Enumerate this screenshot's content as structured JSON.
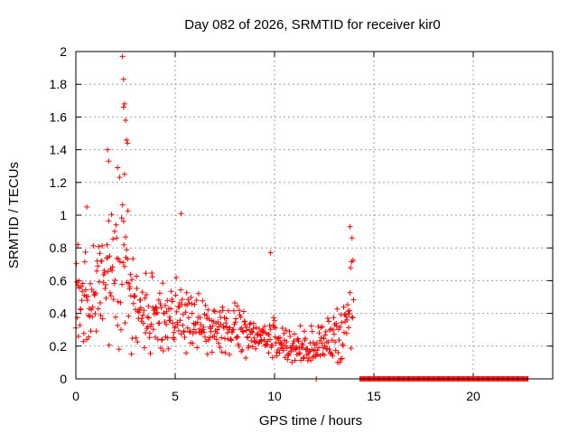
{
  "chart_data": {
    "type": "scatter",
    "title": "Day 082 of 2026, SRMTID for receiver kir0",
    "xlabel": "GPS time / hours",
    "ylabel": "SRMTID / TECUs",
    "xlim": [
      0,
      24
    ],
    "ylim": [
      0,
      2
    ],
    "x_ticks": [
      0,
      5,
      10,
      15,
      20
    ],
    "x_tick_labels": [
      "0",
      "5",
      "10",
      "15",
      "20"
    ],
    "y_ticks": [
      0,
      0.2,
      0.4,
      0.6,
      0.8,
      1.0,
      1.2,
      1.4,
      1.6,
      1.8,
      2.0
    ],
    "y_tick_labels": [
      "0",
      "0.2",
      "0.4",
      "0.6",
      "0.8",
      "1",
      "1.2",
      "1.4",
      "1.6",
      "1.8",
      "2"
    ],
    "grid": true,
    "marker": "+",
    "color": "#ff0000",
    "series": [
      {
        "name": "SRMTID",
        "profile": {
          "description": "approximate envelope of point cloud (x in hours, y in TECU)",
          "x": [
            0,
            0.5,
            1,
            1.5,
            2,
            2.3,
            2.6,
            3,
            3.5,
            4,
            4.5,
            5,
            5.5,
            6,
            7,
            8,
            9,
            10,
            10.5,
            11,
            11.5,
            12,
            12.5,
            13,
            13.5,
            14
          ],
          "center": [
            0.5,
            0.5,
            0.55,
            0.6,
            0.65,
            0.8,
            0.6,
            0.45,
            0.35,
            0.4,
            0.35,
            0.4,
            0.35,
            0.35,
            0.3,
            0.3,
            0.25,
            0.25,
            0.2,
            0.2,
            0.2,
            0.2,
            0.25,
            0.25,
            0.3,
            0.5
          ],
          "spread": [
            0.25,
            0.3,
            0.3,
            0.35,
            0.4,
            0.55,
            0.4,
            0.3,
            0.3,
            0.25,
            0.2,
            0.25,
            0.2,
            0.18,
            0.15,
            0.15,
            0.12,
            0.12,
            0.12,
            0.1,
            0.12,
            0.12,
            0.12,
            0.15,
            0.2,
            0.3
          ]
        },
        "peak_points": [
          {
            "x": 2.35,
            "y": 1.97
          },
          {
            "x": 2.4,
            "y": 1.83
          },
          {
            "x": 2.45,
            "y": 1.68
          },
          {
            "x": 2.4,
            "y": 1.66
          },
          {
            "x": 2.5,
            "y": 1.58
          },
          {
            "x": 2.55,
            "y": 1.46
          },
          {
            "x": 2.6,
            "y": 1.44
          },
          {
            "x": 1.6,
            "y": 1.4
          },
          {
            "x": 1.65,
            "y": 1.33
          },
          {
            "x": 2.1,
            "y": 1.29
          },
          {
            "x": 2.45,
            "y": 1.25
          },
          {
            "x": 0.55,
            "y": 1.05
          },
          {
            "x": 5.3,
            "y": 1.01
          },
          {
            "x": 13.8,
            "y": 0.93
          },
          {
            "x": 13.9,
            "y": 0.86
          },
          {
            "x": 9.8,
            "y": 0.77
          },
          {
            "x": 0.1,
            "y": 0.82
          }
        ],
        "zero_points_x_range": [
          14.3,
          22.8
        ],
        "zero_points_extra_x": [
          12.1
        ]
      }
    ]
  }
}
